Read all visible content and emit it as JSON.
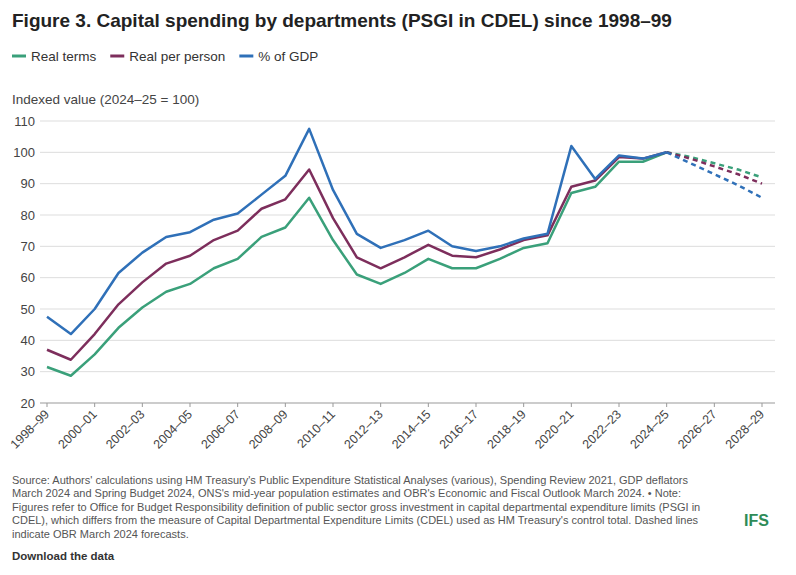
{
  "chart_data": {
    "type": "line",
    "title": "Figure 3. Capital spending by departments (PSGI in CDEL) since 1998–99",
    "y_label": "Indexed value (2024–25 = 100)",
    "categories": [
      "1998–99",
      null,
      "2000–01",
      null,
      "2002–03",
      null,
      "2004–05",
      null,
      "2006–07",
      null,
      "2008–09",
      null,
      "2010–11",
      null,
      "2012–13",
      null,
      "2014–15",
      null,
      "2016–17",
      null,
      "2018–19",
      null,
      "2020–21",
      null,
      "2022–23",
      null,
      "2024–25",
      null,
      "2026–27",
      null,
      "2028–29"
    ],
    "series": [
      {
        "name": "Real terms",
        "color": "#3aa07a",
        "values": [
          31.5,
          28.7,
          35.5,
          44,
          50.5,
          55.5,
          58,
          63,
          66,
          73,
          76,
          85.5,
          72,
          61,
          58,
          61.5,
          66,
          63,
          63,
          66,
          69.5,
          71,
          87,
          89,
          97,
          97,
          100,
          null,
          null,
          null,
          null
        ],
        "forecast_values": [
          null,
          null,
          null,
          null,
          null,
          null,
          null,
          null,
          null,
          null,
          null,
          null,
          null,
          null,
          null,
          null,
          null,
          null,
          null,
          null,
          null,
          null,
          null,
          null,
          null,
          null,
          100,
          98.5,
          96.5,
          94.5,
          92
        ]
      },
      {
        "name": "Real per person",
        "color": "#7d2e5c",
        "values": [
          37,
          33.8,
          42,
          51.5,
          58.5,
          64.5,
          67,
          72,
          75,
          82,
          85,
          94.5,
          79,
          66.5,
          63,
          66.5,
          70.5,
          67,
          66.5,
          69,
          72,
          73.5,
          89,
          91,
          98.5,
          98,
          100,
          null,
          null,
          null,
          null
        ],
        "forecast_values": [
          null,
          null,
          null,
          null,
          null,
          null,
          null,
          null,
          null,
          null,
          null,
          null,
          null,
          null,
          null,
          null,
          null,
          null,
          null,
          null,
          null,
          null,
          null,
          null,
          null,
          null,
          100,
          98,
          95.5,
          93,
          90
        ]
      },
      {
        "name": "% of GDP",
        "color": "#2f70b8",
        "values": [
          47.5,
          42,
          50,
          61.5,
          68,
          73,
          74.5,
          78.5,
          80.5,
          86.5,
          92.5,
          107.5,
          88,
          74,
          69.5,
          72,
          75,
          70,
          68.5,
          70,
          72.5,
          74,
          102,
          91.5,
          99,
          98,
          100,
          null,
          null,
          null,
          null
        ],
        "forecast_values": [
          null,
          null,
          null,
          null,
          null,
          null,
          null,
          null,
          null,
          null,
          null,
          null,
          null,
          null,
          null,
          null,
          null,
          null,
          null,
          null,
          null,
          null,
          null,
          null,
          null,
          null,
          100,
          96.5,
          93,
          89.5,
          85.5
        ]
      }
    ],
    "ylim": [
      20,
      110
    ],
    "yticks": [
      20,
      30,
      40,
      50,
      60,
      70,
      80,
      90,
      100,
      110
    ],
    "grid": true,
    "legend": "top",
    "source": "Source: Authors' calculations using HM Treasury's Public Expenditure Statistical Analyses (various), Spending Review 2021, GDP deflators March 2024 and Spring Budget 2024, ONS's mid-year population estimates and OBR's Economic and Fiscal Outlook March 2024. • Note: Figures refer to Office for Budget Responsibility definition of public sector gross investment in capital departmental expenditure limits (PSGI in CDEL), which differs from the measure of Capital Departmental Expenditure Limits (CDEL) used as HM Treasury's control total. Dashed lines indicate OBR March 2024 forecasts.",
    "download_link": "Download the data",
    "logo": "IFS"
  }
}
